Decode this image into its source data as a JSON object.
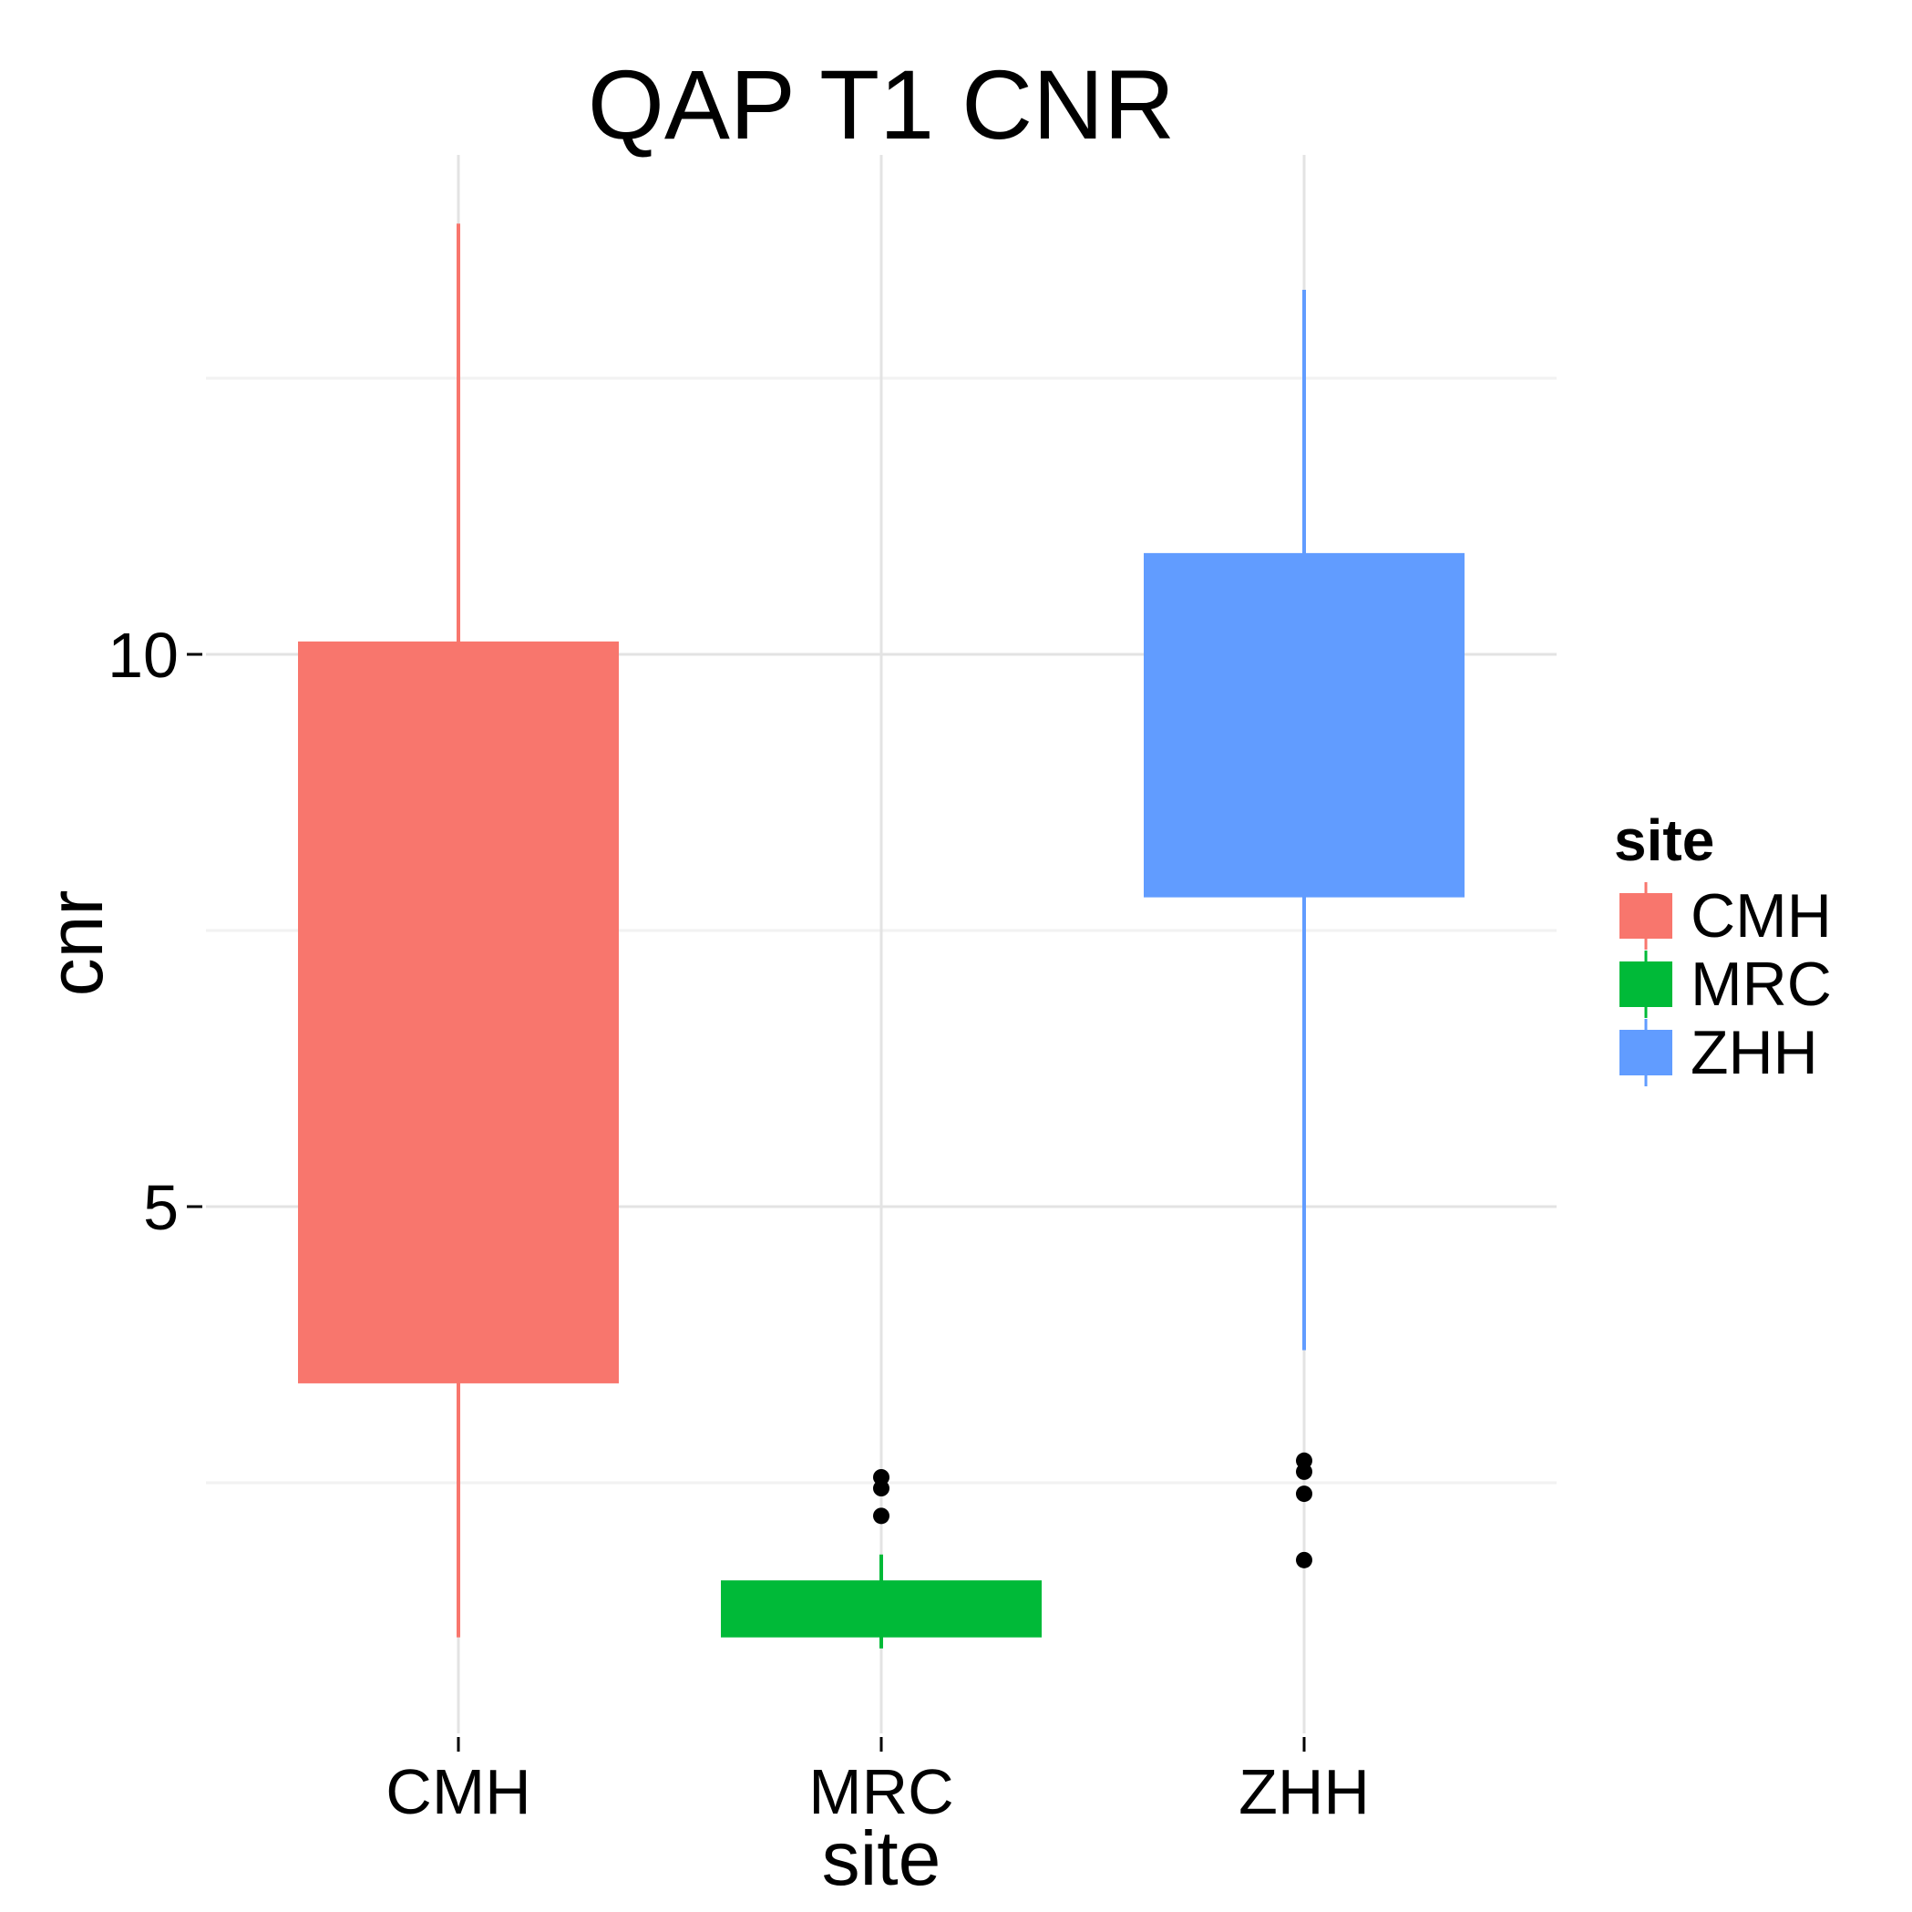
{
  "chart_data": {
    "type": "box",
    "title": "QAP T1 CNR",
    "xlabel": "site",
    "ylabel": "cnr",
    "categories": [
      "CMH",
      "MRC",
      "ZHH"
    ],
    "yticks": [
      5,
      10
    ],
    "ylim": [
      0.0,
      14.7
    ],
    "grid": true,
    "legend": {
      "title": "site",
      "placement": "right",
      "entries": [
        "CMH",
        "MRC",
        "ZHH"
      ]
    },
    "colors": {
      "CMH": "#F8766D",
      "MRC": "#00BA38",
      "ZHH": "#619CFF"
    },
    "series": [
      {
        "category": "CMH",
        "whisker_low": 1.1,
        "q1": 3.4,
        "median": 10.1,
        "q3": 10.1,
        "whisker_high": 13.9,
        "outliers": []
      },
      {
        "category": "MRC",
        "whisker_low": 1.0,
        "q1": 1.1,
        "median": 1.6,
        "q3": 1.6,
        "whisker_high": 1.85,
        "outliers": [
          2.2,
          2.45,
          2.55
        ]
      },
      {
        "category": "ZHH",
        "whisker_low": 3.7,
        "q1": 7.8,
        "median": 10.9,
        "q3": 10.9,
        "whisker_high": 13.3,
        "outliers": [
          1.8,
          2.4,
          2.6,
          2.7
        ]
      }
    ]
  }
}
